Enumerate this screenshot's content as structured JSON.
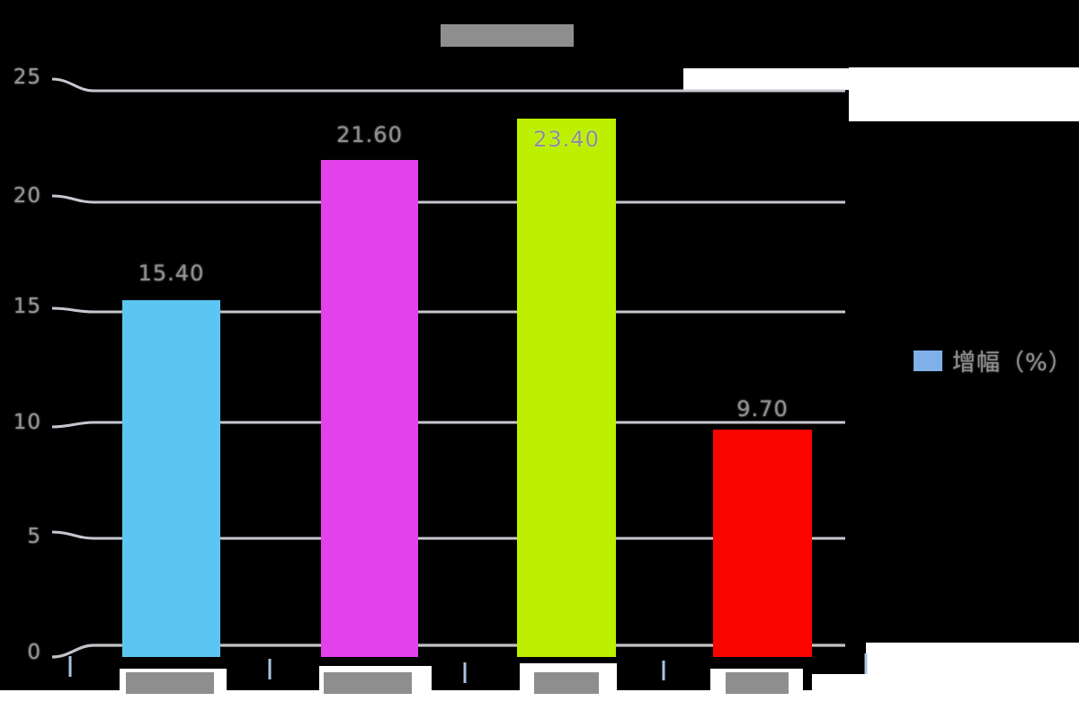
{
  "chart_data": {
    "type": "bar",
    "title": "██████",
    "title_legibility": "illegible-cjk-rendered-as-solid-gray-block",
    "categories": [
      "████",
      "████",
      "███",
      "███"
    ],
    "categories_legibility": "illegible-cjk-rendered-as-solid-gray-blocks",
    "values": [
      15.4,
      21.6,
      23.4,
      9.7
    ],
    "value_labels": [
      "15.40",
      "21.60",
      "23.40",
      "9.70"
    ],
    "bar_colors": [
      "#5cc5f1",
      "#e341e9",
      "#bcf000",
      "#fa0400"
    ],
    "y_ticks": [
      "0",
      "5",
      "10",
      "15",
      "20",
      "25"
    ],
    "ylim": [
      0,
      25
    ],
    "grid": true,
    "style": "hand-drawn-xkcd",
    "legend": {
      "label": "增幅（%）",
      "swatch_color": "#7fb1e8",
      "position": "right"
    }
  },
  "colors": {
    "background": "#000000",
    "gridline": "#c7c7d0",
    "axis_line": "#c2c2c8",
    "tick_mark": "#aac4e0",
    "text_gray": "#8e8e8e",
    "block_gray": "#8e8e8e",
    "patch_white": "#ffffff"
  }
}
